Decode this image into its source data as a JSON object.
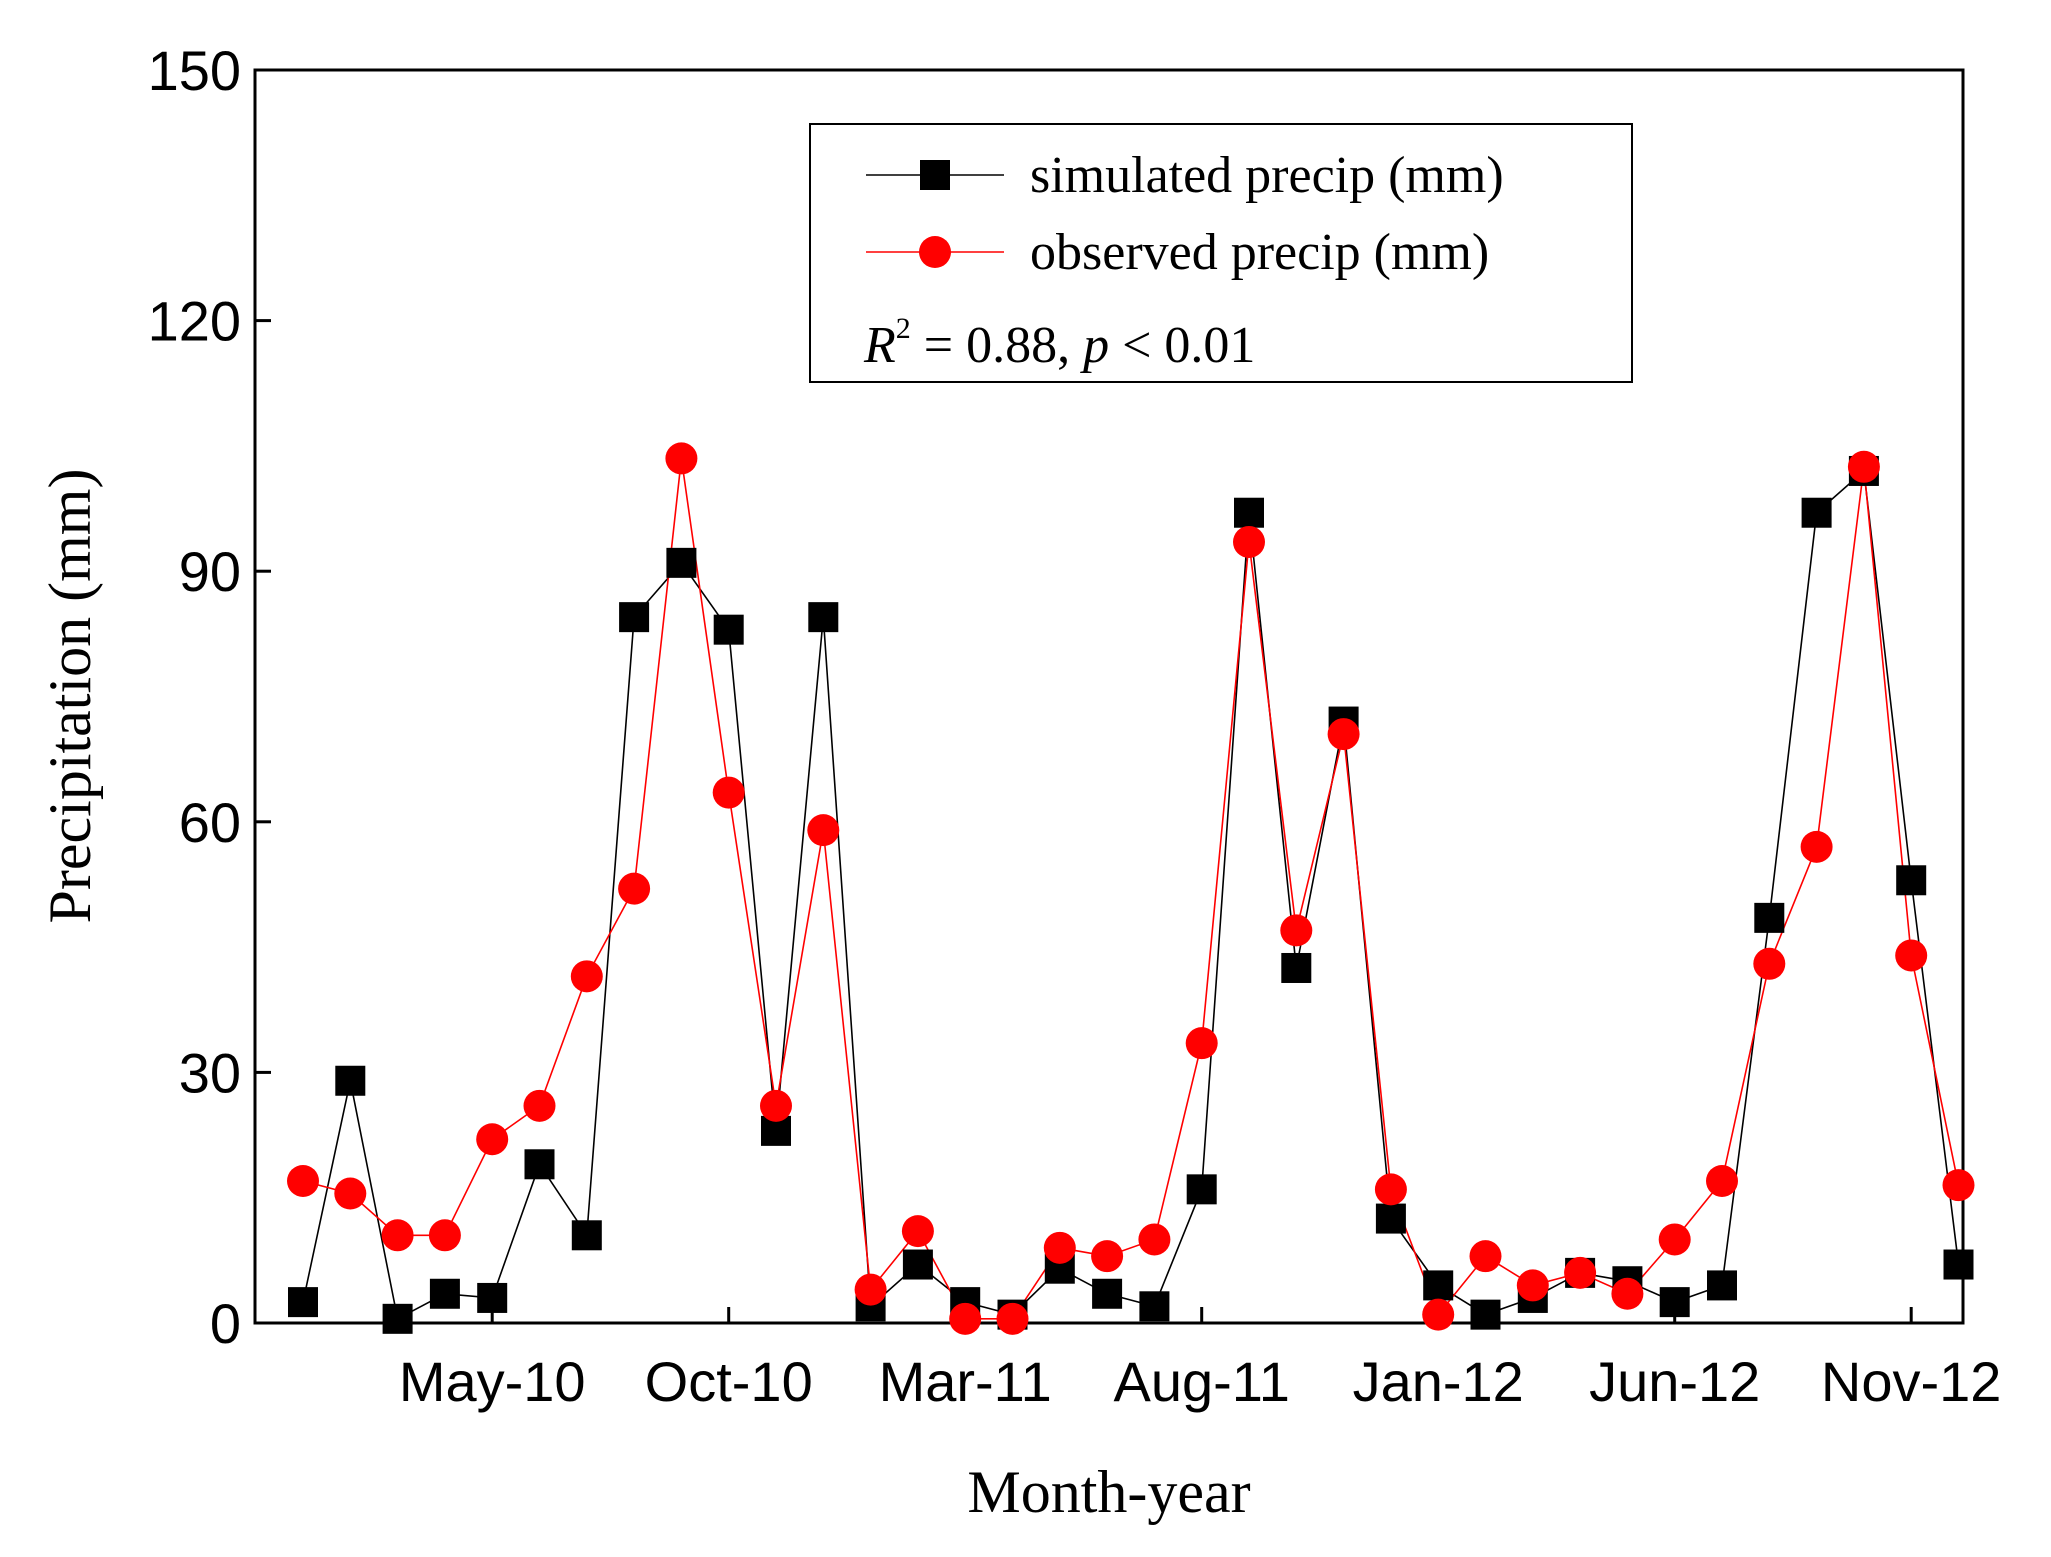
{
  "chart_data": {
    "type": "line",
    "title": "",
    "xlabel": "Month-year",
    "ylabel": "Precipitation (mm)",
    "ylim": [
      0,
      150
    ],
    "yticks": [
      0,
      30,
      60,
      90,
      120,
      150
    ],
    "ytick_labels": [
      "0",
      "30",
      "60",
      "90",
      "120",
      "150"
    ],
    "xtick_labels": [
      "May-10",
      "Oct-10",
      "Mar-11",
      "Aug-11",
      "Jan-12",
      "Jun-12",
      "Nov-12"
    ],
    "xtick_indices": [
      4,
      9,
      14,
      19,
      24,
      29,
      34
    ],
    "x": [
      "Jan-10",
      "Feb-10",
      "Mar-10",
      "Apr-10",
      "May-10",
      "Jun-10",
      "Jul-10",
      "Aug-10",
      "Sep-10",
      "Oct-10",
      "Nov-10",
      "Dec-10",
      "Jan-11",
      "Feb-11",
      "Mar-11",
      "Apr-11",
      "May-11",
      "Jun-11",
      "Jul-11",
      "Aug-11",
      "Sep-11",
      "Oct-11",
      "Nov-11",
      "Dec-11",
      "Jan-12",
      "Feb-12",
      "Mar-12",
      "Apr-12",
      "May-12",
      "Jun-12",
      "Jul-12",
      "Aug-12",
      "Sep-12",
      "Oct-12",
      "Nov-12",
      "Dec-12"
    ],
    "grid": false,
    "legend_position": "top-right",
    "series": [
      {
        "name": "simulated precip (mm)",
        "color": "#000000",
        "marker": "square",
        "values": [
          2.5,
          29,
          0.5,
          3.5,
          3,
          19,
          10.5,
          84.5,
          91,
          83,
          23,
          84.5,
          2,
          7,
          2.5,
          1,
          6.5,
          3.5,
          2,
          16,
          97,
          42.5,
          72,
          12.5,
          4.5,
          1,
          3,
          6,
          5,
          2.5,
          4.5,
          48.5,
          97,
          102,
          53,
          7
        ]
      },
      {
        "name": "observed precip (mm)",
        "color": "#ff0000",
        "marker": "circle",
        "values": [
          17,
          15.5,
          10.5,
          10.5,
          22,
          26,
          41.5,
          52,
          103.5,
          63.5,
          26,
          59,
          4,
          11,
          0.5,
          0.5,
          9,
          8,
          10,
          33.5,
          93.5,
          47,
          70.5,
          16,
          1,
          8,
          4.5,
          6,
          3.5,
          10,
          17,
          43,
          57,
          102.5,
          44,
          16.5
        ]
      }
    ],
    "annotation": {
      "r_symbol": "R",
      "r_superscript": "2",
      "r_value": " = 0.88, ",
      "p_symbol": "p",
      "p_value": " < 0.01"
    }
  }
}
